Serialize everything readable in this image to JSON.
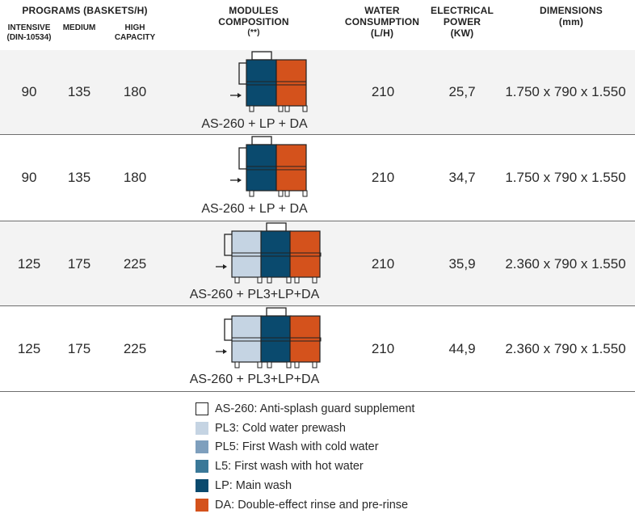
{
  "colors": {
    "as260": "#ffffff",
    "pl3": "#c5d4e3",
    "pl5": "#7e9fbd",
    "l5": "#3a7898",
    "lp": "#0a4a6e",
    "da": "#d4521c",
    "outline": "#222222"
  },
  "header": {
    "programs": "PROGRAMS (BASKETS/H)",
    "intensive": "INTENSIVE",
    "intensive_note": "(DIN-10534)",
    "medium": "MEDIUM",
    "high": "HIGH",
    "capacity": "CAPACITY",
    "modules": "MODULES",
    "composition": "COMPOSITION",
    "composition_note": "(**)",
    "water": "WATER",
    "consumption": "CONSUMPTION",
    "water_unit": "(L/H)",
    "electrical": "ELECTRICAL",
    "power": "POWER",
    "power_unit": "(KW)",
    "dimensions": "DIMENSIONS",
    "dimensions_unit": "(mm)"
  },
  "rows": [
    {
      "intensive": "90",
      "medium": "135",
      "high": "180",
      "model": "AS-260 + LP + DA",
      "water": "210",
      "power": "25,7",
      "dimensions": "1.750 x 790 x 1.550",
      "modules": [
        "lp",
        "da"
      ]
    },
    {
      "intensive": "90",
      "medium": "135",
      "high": "180",
      "model": "AS-260 + LP + DA",
      "water": "210",
      "power": "34,7",
      "dimensions": "1.750 x 790 x 1.550",
      "modules": [
        "lp",
        "da"
      ]
    },
    {
      "intensive": "125",
      "medium": "175",
      "high": "225",
      "model": "AS-260 + PL3+LP+DA",
      "water": "210",
      "power": "35,9",
      "dimensions": "2.360 x 790 x 1.550",
      "modules": [
        "pl3",
        "lp",
        "da"
      ]
    },
    {
      "intensive": "125",
      "medium": "175",
      "high": "225",
      "model": "AS-260 + PL3+LP+DA",
      "water": "210",
      "power": "44,9",
      "dimensions": "2.360 x 790 x 1.550",
      "modules": [
        "pl3",
        "lp",
        "da"
      ]
    }
  ],
  "legend": [
    {
      "key": "as260",
      "label": "AS-260: Anti-splash guard supplement"
    },
    {
      "key": "pl3",
      "label": "PL3: Cold water prewash"
    },
    {
      "key": "pl5",
      "label": "PL5: First Wash with cold water"
    },
    {
      "key": "l5",
      "label": "L5: First wash with hot water"
    },
    {
      "key": "lp",
      "label": "LP: Main wash"
    },
    {
      "key": "da",
      "label": "DA: Double-effect rinse and pre-rinse"
    }
  ]
}
